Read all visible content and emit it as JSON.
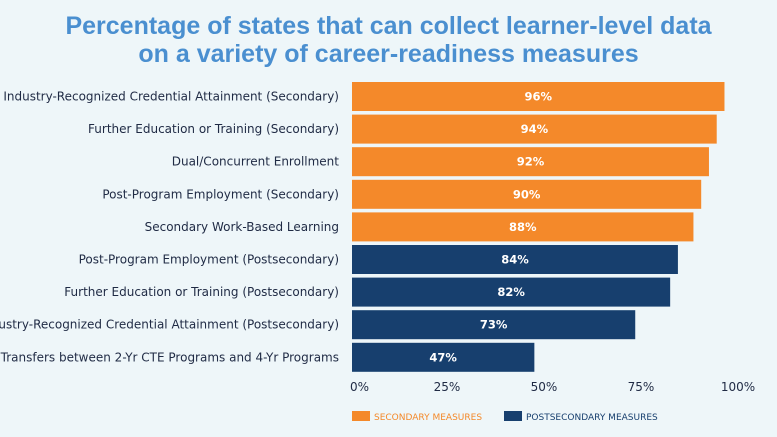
{
  "title_line1": "Percentage of states that can collect learner-level data",
  "title_line2": "on a variety of career-readiness measures",
  "chart_data": {
    "type": "bar",
    "orientation": "horizontal",
    "categories": [
      "Industry-Recognized Credential Attainment (Secondary)",
      "Further Education or Training (Secondary)",
      "Dual/Concurrent Enrollment",
      "Post-Program Employment (Secondary)",
      "Secondary Work-Based Learning",
      "Post-Program Employment (Postsecondary)",
      "Further Education or Training (Postsecondary)",
      "Industry-Recognized Credential Attainment (Postsecondary)",
      "Transfers between 2-Yr CTE Programs and 4-Yr Programs"
    ],
    "values": [
      96,
      94,
      92,
      90,
      88,
      84,
      82,
      73,
      47
    ],
    "value_labels": [
      "96%",
      "94%",
      "92%",
      "90%",
      "88%",
      "84%",
      "82%",
      "73%",
      "47%"
    ],
    "groups": [
      "secondary",
      "secondary",
      "secondary",
      "secondary",
      "secondary",
      "postsecondary",
      "postsecondary",
      "postsecondary",
      "postsecondary"
    ],
    "xlim": [
      0,
      100
    ],
    "xticks": [
      0,
      25,
      50,
      75,
      100
    ],
    "xtick_labels": [
      "0%",
      "25%",
      "50%",
      "75%",
      "100%"
    ],
    "grid": false,
    "legend_position": "bottom-right",
    "legend": [
      {
        "key": "secondary",
        "label": "SECONDARY MEASURES",
        "color": "#f4892a"
      },
      {
        "key": "postsecondary",
        "label": "POSTSECONDARY MEASURES",
        "color": "#173f6e"
      }
    ]
  },
  "colors": {
    "secondary": "#f4892a",
    "postsecondary": "#173f6e",
    "axis": "#1f2a44",
    "title": "#4a8fd0"
  }
}
